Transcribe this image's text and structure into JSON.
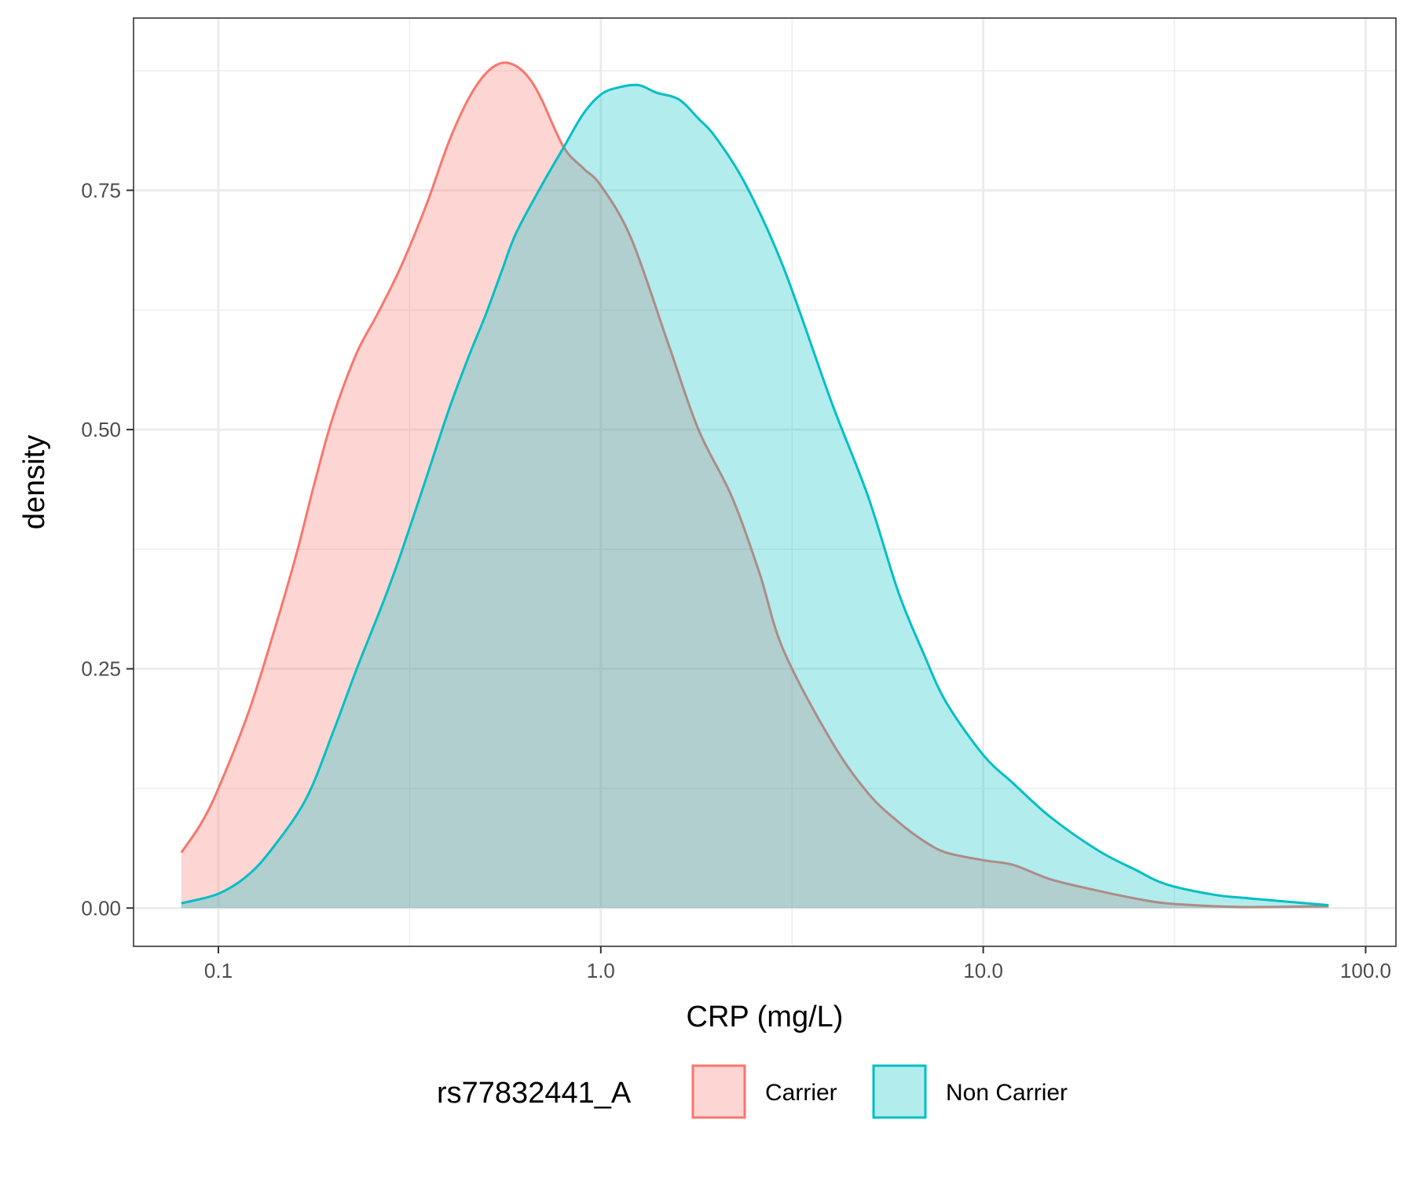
{
  "chart_data": {
    "type": "area",
    "subtype": "density",
    "xlabel": "CRP (mg/L)",
    "ylabel": "density",
    "x_scale": "log10",
    "xlim": [
      0.06,
      120
    ],
    "ylim": [
      -0.04,
      0.93
    ],
    "x_ticks": [
      0.1,
      1.0,
      10.0,
      100.0
    ],
    "x_tick_labels": [
      "0.1",
      "1.0",
      "10.0",
      "100.0"
    ],
    "y_ticks": [
      0.0,
      0.25,
      0.5,
      0.75
    ],
    "y_tick_labels": [
      "0.00",
      "0.25",
      "0.50",
      "0.75"
    ],
    "grid": true,
    "legend": {
      "title": "rs77832441_A",
      "position": "bottom"
    },
    "series": [
      {
        "name": "Carrier",
        "color": "#F8766D",
        "fill_opacity": 0.3,
        "points": [
          [
            0.08,
            0.058
          ],
          [
            0.09,
            0.088
          ],
          [
            0.1,
            0.125
          ],
          [
            0.12,
            0.205
          ],
          [
            0.14,
            0.29
          ],
          [
            0.16,
            0.37
          ],
          [
            0.18,
            0.45
          ],
          [
            0.2,
            0.515
          ],
          [
            0.23,
            0.58
          ],
          [
            0.26,
            0.62
          ],
          [
            0.3,
            0.67
          ],
          [
            0.35,
            0.735
          ],
          [
            0.4,
            0.8
          ],
          [
            0.45,
            0.845
          ],
          [
            0.5,
            0.872
          ],
          [
            0.55,
            0.883
          ],
          [
            0.6,
            0.88
          ],
          [
            0.65,
            0.867
          ],
          [
            0.7,
            0.845
          ],
          [
            0.8,
            0.795
          ],
          [
            0.9,
            0.773
          ],
          [
            1.0,
            0.755
          ],
          [
            1.2,
            0.7
          ],
          [
            1.5,
            0.59
          ],
          [
            1.8,
            0.5
          ],
          [
            2.2,
            0.43
          ],
          [
            2.6,
            0.35
          ],
          [
            3.0,
            0.27
          ],
          [
            4.0,
            0.175
          ],
          [
            5.0,
            0.12
          ],
          [
            6.0,
            0.09
          ],
          [
            7.0,
            0.07
          ],
          [
            8.0,
            0.058
          ],
          [
            10.0,
            0.05
          ],
          [
            12.0,
            0.045
          ],
          [
            15.0,
            0.03
          ],
          [
            20.0,
            0.018
          ],
          [
            25.0,
            0.01
          ],
          [
            30.0,
            0.005
          ],
          [
            40.0,
            0.002
          ],
          [
            50.0,
            0.001
          ],
          [
            80.0,
            0.002
          ]
        ]
      },
      {
        "name": "Non Carrier",
        "color": "#00BFC4",
        "fill_opacity": 0.3,
        "points": [
          [
            0.08,
            0.005
          ],
          [
            0.1,
            0.015
          ],
          [
            0.12,
            0.035
          ],
          [
            0.14,
            0.065
          ],
          [
            0.17,
            0.115
          ],
          [
            0.2,
            0.185
          ],
          [
            0.23,
            0.25
          ],
          [
            0.27,
            0.32
          ],
          [
            0.3,
            0.37
          ],
          [
            0.35,
            0.45
          ],
          [
            0.4,
            0.52
          ],
          [
            0.45,
            0.575
          ],
          [
            0.5,
            0.62
          ],
          [
            0.55,
            0.665
          ],
          [
            0.6,
            0.705
          ],
          [
            0.7,
            0.755
          ],
          [
            0.8,
            0.795
          ],
          [
            0.9,
            0.83
          ],
          [
            1.0,
            0.85
          ],
          [
            1.1,
            0.857
          ],
          [
            1.25,
            0.86
          ],
          [
            1.4,
            0.852
          ],
          [
            1.6,
            0.845
          ],
          [
            1.8,
            0.825
          ],
          [
            2.0,
            0.805
          ],
          [
            2.4,
            0.755
          ],
          [
            3.0,
            0.67
          ],
          [
            4.0,
            0.53
          ],
          [
            5.0,
            0.43
          ],
          [
            6.0,
            0.33
          ],
          [
            7.0,
            0.265
          ],
          [
            8.0,
            0.215
          ],
          [
            10.0,
            0.16
          ],
          [
            12.0,
            0.13
          ],
          [
            15.0,
            0.095
          ],
          [
            20.0,
            0.06
          ],
          [
            25.0,
            0.04
          ],
          [
            30.0,
            0.025
          ],
          [
            40.0,
            0.014
          ],
          [
            50.0,
            0.01
          ],
          [
            80.0,
            0.003
          ]
        ]
      }
    ],
    "colors": {
      "panel_border": "#333333",
      "grid": "#ebebeb",
      "tick_label": "#4d4d4d"
    }
  }
}
